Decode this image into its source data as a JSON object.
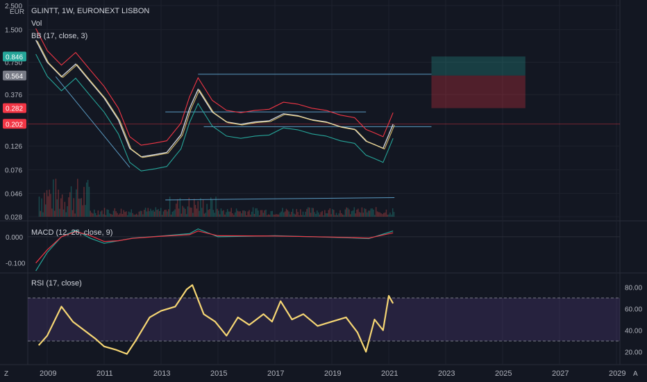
{
  "header": {
    "symbol_line": "GLINTT, 1W, EURONEXT LISBON",
    "vol_label": "Vol",
    "bb_label": "BB (17, close, 3)",
    "currency": "EUR"
  },
  "left_axis_labels": [
    "2.500",
    "1.500",
    "0.750",
    "0.376",
    "0.126",
    "0.076",
    "0.046",
    "0.028"
  ],
  "price_badges": [
    {
      "text": "0.846",
      "color": "#26a69a"
    },
    {
      "text": "0.564",
      "color": "#787b86"
    },
    {
      "text": "0.282",
      "color": "#f23645"
    },
    {
      "text": "0.202",
      "color": "#f23645"
    }
  ],
  "macd_panel": {
    "label": "MACD (12, 26, close, 9)",
    "axis_labels": [
      "0.000",
      "-0.100"
    ]
  },
  "rsi_panel": {
    "label": "RSI (17, close)",
    "axis_labels": [
      "80.00",
      "60.00",
      "40.00",
      "20.00"
    ]
  },
  "time_axis": [
    "2009",
    "2011",
    "2013",
    "2015",
    "2017",
    "2019",
    "2021",
    "2023",
    "2025",
    "2027",
    "2029"
  ],
  "corner_labels": {
    "left": "Z",
    "right": "A"
  },
  "chart_data": [
    {
      "type": "line",
      "title": "GLINTT, 1W, EURONEXT LISBON",
      "log_scale": true,
      "ylim": [
        0.028,
        2.5
      ],
      "x": [
        2008.6,
        2009.0,
        2009.5,
        2010.0,
        2010.5,
        2011.0,
        2011.5,
        2011.9,
        2012.3,
        2012.8,
        2013.2,
        2013.7,
        2014.0,
        2014.3,
        2014.8,
        2015.3,
        2015.8,
        2016.3,
        2016.8,
        2017.3,
        2017.8,
        2018.3,
        2018.8,
        2019.3,
        2019.8,
        2020.2,
        2020.5,
        2020.8,
        2021.0,
        2021.15
      ],
      "series": [
        {
          "values": [
            1.2,
            0.75,
            0.55,
            0.72,
            0.5,
            0.35,
            0.22,
            0.12,
            0.1,
            0.105,
            0.11,
            0.16,
            0.28,
            0.42,
            0.26,
            0.21,
            0.2,
            0.21,
            0.215,
            0.25,
            0.24,
            0.22,
            0.21,
            0.19,
            0.18,
            0.14,
            0.13,
            0.12,
            0.16,
            0.2
          ]
        }
      ],
      "trend_lines": [
        {
          "from": [
            2009.3,
            0.55
          ],
          "to": [
            2011.9,
            0.08
          ]
        },
        {
          "from": [
            2014.3,
            0.58
          ],
          "to": [
            2022.5,
            0.58
          ]
        },
        {
          "from": [
            2013.15,
            0.26
          ],
          "to": [
            2020.2,
            0.26
          ]
        },
        {
          "from": [
            2013.15,
            0.04
          ],
          "to": [
            2021.2,
            0.042
          ]
        },
        {
          "from": [
            2014.5,
            0.19
          ],
          "to": [
            2022.5,
            0.19
          ]
        }
      ],
      "position_tool": {
        "entry": 0.564,
        "target": 0.846,
        "stop": 0.282,
        "x_range": [
          2022.5,
          2025.8
        ]
      }
    },
    {
      "type": "line",
      "title": "MACD (12, 26, close, 9)",
      "ylim": [
        -0.13,
        0.05
      ],
      "x": [
        2008.6,
        2009.0,
        2009.5,
        2010.0,
        2010.5,
        2011.0,
        2011.5,
        2012.0,
        2013.0,
        2014.0,
        2014.3,
        2015.0,
        2017.0,
        2019.0,
        2020.3,
        2021.15
      ],
      "series": [
        {
          "values": [
            -0.13,
            -0.06,
            0.0,
            0.025,
            -0.005,
            -0.025,
            -0.015,
            -0.005,
            0.003,
            0.012,
            0.03,
            0.0,
            0.004,
            -0.002,
            -0.007,
            0.022
          ]
        },
        {
          "values": [
            -0.1,
            -0.05,
            0.0,
            0.02,
            0.005,
            -0.018,
            -0.015,
            -0.006,
            0.002,
            0.008,
            0.022,
            0.004,
            0.003,
            -0.001,
            -0.005,
            0.015
          ]
        }
      ],
      "axis_ticks": [
        0.0,
        -0.1
      ]
    },
    {
      "type": "line",
      "title": "RSI (17, close)",
      "ylim": [
        10,
        90
      ],
      "overbought": 70,
      "oversold": 30,
      "x": [
        2008.7,
        2009.0,
        2009.5,
        2009.9,
        2010.3,
        2010.7,
        2011.0,
        2011.4,
        2011.8,
        2012.1,
        2012.6,
        2013.0,
        2013.5,
        2013.9,
        2014.1,
        2014.5,
        2014.9,
        2015.3,
        2015.7,
        2016.1,
        2016.6,
        2016.9,
        2017.2,
        2017.6,
        2018.0,
        2018.5,
        2019.0,
        2019.5,
        2019.9,
        2020.2,
        2020.5,
        2020.8,
        2021.0,
        2021.15
      ],
      "series": [
        {
          "values": [
            26,
            35,
            62,
            48,
            40,
            32,
            25,
            22,
            18,
            30,
            52,
            58,
            62,
            78,
            82,
            55,
            48,
            35,
            52,
            45,
            55,
            48,
            67,
            50,
            55,
            44,
            48,
            52,
            38,
            20,
            50,
            40,
            72,
            65
          ]
        }
      ],
      "axis_ticks": [
        80,
        60,
        40,
        20
      ]
    }
  ]
}
